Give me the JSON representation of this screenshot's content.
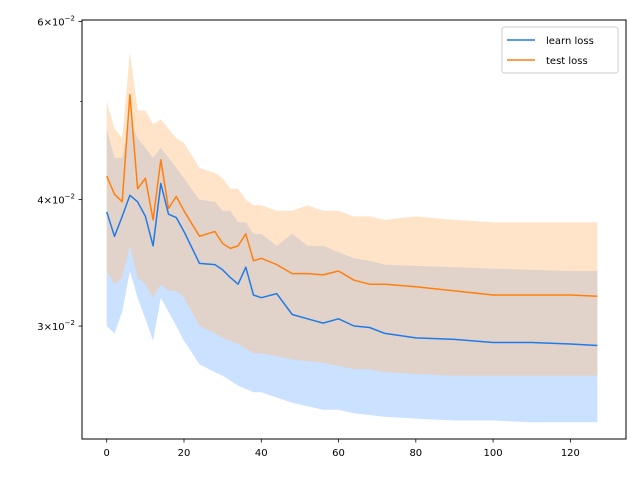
{
  "chart_data": {
    "type": "line",
    "title": "",
    "xlabel": "",
    "ylabel": "",
    "yscale": "log",
    "xlim": [
      -6.4,
      134.4
    ],
    "ylim": [
      0.0232,
      0.0602
    ],
    "x_ticks": [
      0,
      20,
      40,
      60,
      80,
      100,
      120
    ],
    "x_tick_labels": [
      "0",
      "20",
      "40",
      "60",
      "80",
      "100",
      "120"
    ],
    "y_ticks_labeled": [
      {
        "value": 0.03,
        "mantissa": "3",
        "times": "×",
        "base": "10",
        "exponent": "−2"
      },
      {
        "value": 0.04,
        "mantissa": "4",
        "times": "×",
        "base": "10",
        "exponent": "−2"
      },
      {
        "value": 0.06,
        "mantissa": "6",
        "times": "×",
        "base": "10",
        "exponent": "−2"
      }
    ],
    "y_ticks_minor": [
      0.05
    ],
    "grid": false,
    "legend_position": "top-right",
    "series": [
      {
        "name": "learn loss",
        "color": "#1f7be8",
        "band_color": "#9ec9ff",
        "x": [
          0,
          2,
          4,
          6,
          8,
          10,
          12,
          14,
          16,
          18,
          20,
          24,
          28,
          30,
          32,
          34,
          36,
          38,
          40,
          44,
          48,
          52,
          56,
          60,
          64,
          68,
          72,
          80,
          90,
          100,
          110,
          120,
          127
        ],
        "values": [
          0.0389,
          0.0368,
          0.0385,
          0.0404,
          0.0398,
          0.0385,
          0.036,
          0.0415,
          0.0387,
          0.0384,
          0.0372,
          0.0346,
          0.0345,
          0.0341,
          0.0335,
          0.033,
          0.0343,
          0.0322,
          0.032,
          0.0323,
          0.0308,
          0.0305,
          0.0302,
          0.0305,
          0.03,
          0.0299,
          0.0295,
          0.0292,
          0.0291,
          0.0289,
          0.0289,
          0.0288,
          0.0287
        ],
        "band_upper": [
          0.047,
          0.044,
          0.044,
          0.048,
          0.046,
          0.045,
          0.044,
          0.045,
          0.044,
          0.043,
          0.042,
          0.04,
          0.0398,
          0.039,
          0.039,
          0.038,
          0.038,
          0.037,
          0.037,
          0.036,
          0.037,
          0.036,
          0.036,
          0.0355,
          0.035,
          0.0348,
          0.0345,
          0.0344,
          0.0343,
          0.0342,
          0.0341,
          0.034,
          0.034
        ],
        "band_lower": [
          0.03,
          0.0295,
          0.031,
          0.034,
          0.032,
          0.0305,
          0.029,
          0.032,
          0.031,
          0.03,
          0.029,
          0.0275,
          0.027,
          0.0268,
          0.0265,
          0.0262,
          0.026,
          0.0258,
          0.0258,
          0.0255,
          0.0252,
          0.025,
          0.0248,
          0.0248,
          0.0246,
          0.0245,
          0.0244,
          0.0243,
          0.0242,
          0.0242,
          0.0241,
          0.0241,
          0.0241
        ]
      },
      {
        "name": "test loss",
        "color": "#ff7f0e",
        "band_color": "#ffc48a",
        "x": [
          0,
          2,
          4,
          6,
          8,
          10,
          12,
          14,
          16,
          18,
          20,
          24,
          28,
          30,
          32,
          34,
          36,
          38,
          40,
          44,
          48,
          52,
          56,
          60,
          64,
          68,
          72,
          80,
          90,
          100,
          110,
          120,
          127
        ],
        "values": [
          0.0422,
          0.0405,
          0.0398,
          0.0508,
          0.041,
          0.042,
          0.0382,
          0.0438,
          0.0392,
          0.0403,
          0.039,
          0.0368,
          0.0372,
          0.0362,
          0.0358,
          0.036,
          0.037,
          0.0348,
          0.035,
          0.0345,
          0.0338,
          0.0338,
          0.0337,
          0.034,
          0.0333,
          0.033,
          0.033,
          0.0328,
          0.0325,
          0.0322,
          0.0322,
          0.0322,
          0.0321
        ],
        "band_upper": [
          0.05,
          0.047,
          0.046,
          0.056,
          0.049,
          0.049,
          0.0475,
          0.048,
          0.047,
          0.046,
          0.0455,
          0.043,
          0.0425,
          0.042,
          0.041,
          0.041,
          0.04,
          0.0395,
          0.0395,
          0.039,
          0.039,
          0.0395,
          0.039,
          0.039,
          0.0385,
          0.0385,
          0.0382,
          0.0385,
          0.0382,
          0.038,
          0.038,
          0.038,
          0.038
        ],
        "band_lower": [
          0.034,
          0.033,
          0.0335,
          0.036,
          0.0335,
          0.033,
          0.032,
          0.033,
          0.0325,
          0.0325,
          0.032,
          0.03,
          0.0295,
          0.0292,
          0.029,
          0.0288,
          0.0285,
          0.0282,
          0.0282,
          0.028,
          0.0278,
          0.0277,
          0.0276,
          0.0274,
          0.0272,
          0.0272,
          0.027,
          0.0269,
          0.0268,
          0.0268,
          0.0268,
          0.0268,
          0.0268
        ]
      }
    ]
  }
}
